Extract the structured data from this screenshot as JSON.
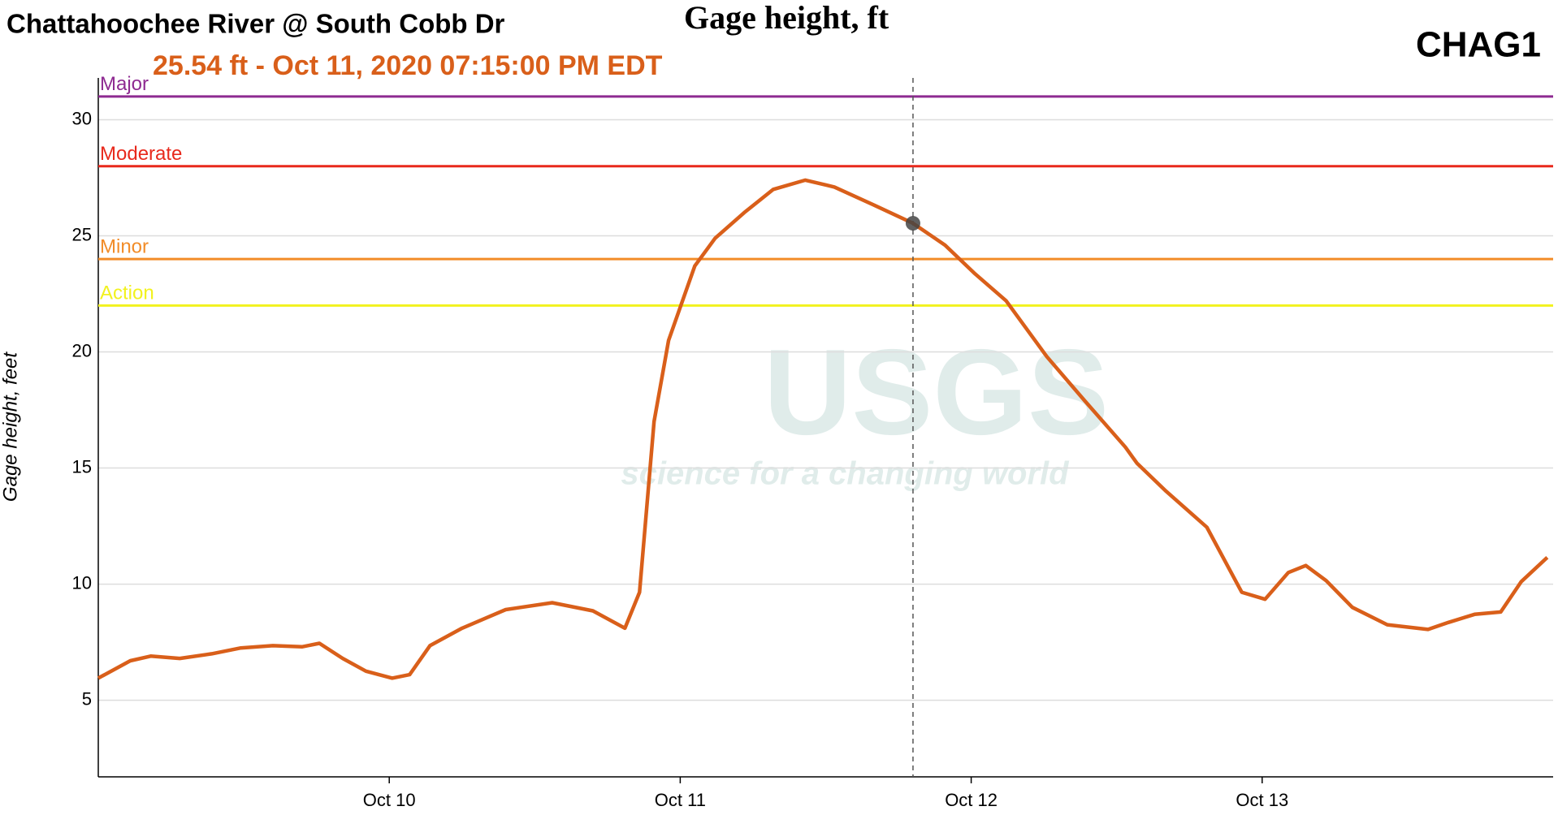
{
  "chart_data": {
    "type": "line",
    "title": "Chattahoochee River @ South Cobb Dr",
    "subtitle": "Gage height, ft",
    "site_id": "CHAG1",
    "annotation": "25.54 ft - Oct 11, 2020 07:15:00 PM EDT",
    "y_label": "Gage height, feet",
    "watermark": {
      "logo": "USGS",
      "tagline": "science for a changing world"
    },
    "x": [
      9.0,
      9.11,
      9.18,
      9.28,
      9.39,
      9.49,
      9.6,
      9.7,
      9.76,
      9.84,
      9.92,
      10.01,
      10.07,
      10.14,
      10.25,
      10.4,
      10.56,
      10.7,
      10.81,
      10.86,
      10.91,
      10.96,
      11.05,
      11.12,
      11.22,
      11.32,
      11.43,
      11.53,
      11.67,
      11.8,
      11.91,
      12.01,
      12.12,
      12.26,
      12.39,
      12.53,
      12.57,
      12.67,
      12.81,
      12.93,
      13.01,
      13.09,
      13.15,
      13.22,
      13.31,
      13.43,
      13.57,
      13.64,
      13.73,
      13.82,
      13.89,
      13.98
    ],
    "values": [
      5.95,
      6.7,
      6.9,
      6.8,
      7.0,
      7.25,
      7.35,
      7.3,
      7.45,
      6.8,
      6.25,
      5.95,
      6.1,
      7.35,
      8.1,
      8.9,
      9.2,
      8.85,
      8.1,
      9.65,
      17.0,
      20.5,
      23.7,
      24.9,
      26.0,
      27.0,
      27.4,
      27.1,
      26.3,
      25.54,
      24.6,
      23.4,
      22.2,
      19.8,
      17.9,
      15.9,
      15.2,
      14.0,
      12.45,
      9.65,
      9.35,
      10.5,
      10.8,
      10.15,
      9.0,
      8.25,
      8.05,
      8.35,
      8.7,
      8.8,
      10.1,
      11.15
    ],
    "color": "#d95f1a",
    "highlight": {
      "x": 11.8,
      "y": 25.54
    },
    "thresholds": [
      {
        "name": "Major",
        "value": 31,
        "color": "#8e2a91"
      },
      {
        "name": "Moderate",
        "value": 28,
        "color": "#e8291c"
      },
      {
        "name": "Minor",
        "value": 24,
        "color": "#f28c28"
      },
      {
        "name": "Action",
        "value": 22,
        "color": "#f2f21e"
      }
    ],
    "xlim": [
      9,
      14
    ],
    "xticks": [
      {
        "value": 10,
        "label": "Oct 10"
      },
      {
        "value": 11,
        "label": "Oct 11"
      },
      {
        "value": 12,
        "label": "Oct 12"
      },
      {
        "value": 13,
        "label": "Oct 13"
      }
    ],
    "ylim": [
      1.7,
      31.8
    ],
    "yticks": [
      5,
      10,
      15,
      20,
      25,
      30
    ],
    "grid": true
  }
}
